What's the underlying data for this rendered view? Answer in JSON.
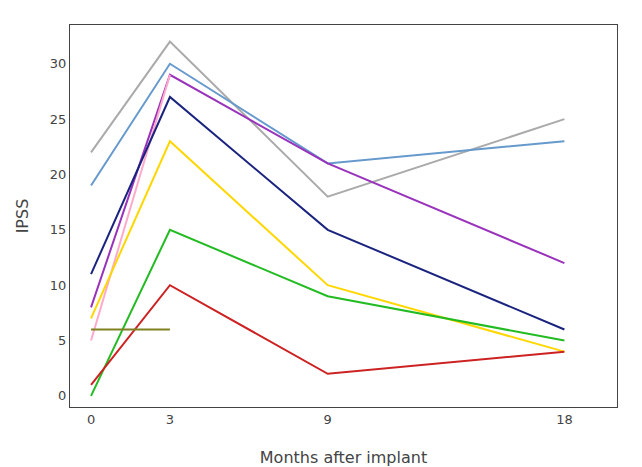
{
  "chart_data": {
    "type": "line",
    "xlabel": "Months after implant",
    "ylabel": "IPSS",
    "series": [
      {
        "x": [
          0,
          3,
          9,
          18
        ],
        "values": [
          22,
          32,
          18,
          25
        ],
        "color": "#AAAAAA"
      },
      {
        "x": [
          0,
          3,
          9,
          18
        ],
        "values": [
          19,
          30,
          21,
          23
        ],
        "color": "#6699CC"
      },
      {
        "x": [
          0,
          3,
          9,
          18
        ],
        "values": [
          8,
          29,
          21,
          12
        ],
        "color": "#9933BB"
      },
      {
        "x": [
          0,
          3
        ],
        "values": [
          5,
          29
        ],
        "color": "#FFAACC"
      },
      {
        "x": [
          0,
          3,
          9,
          18
        ],
        "values": [
          11,
          27,
          15,
          6
        ],
        "color": "#1A237E"
      },
      {
        "x": [
          0,
          3,
          9,
          18
        ],
        "values": [
          7,
          23,
          10,
          4
        ],
        "color": "#FFD700"
      },
      {
        "x": [
          0,
          3,
          9,
          18
        ],
        "values": [
          0,
          15,
          9,
          5
        ],
        "color": "#22BB22"
      },
      {
        "x": [
          0,
          3,
          9,
          18
        ],
        "values": [
          1,
          10,
          2,
          4
        ],
        "color": "#CC2222"
      },
      {
        "x": [
          0,
          3
        ],
        "values": [
          6,
          6
        ],
        "color": "#808020"
      }
    ],
    "xlim": [
      -0.8,
      20.0
    ],
    "xticks": [
      0,
      3,
      9,
      18
    ],
    "ylim": [
      -1.0,
      33.5
    ],
    "yticks": [
      0,
      5,
      10,
      15,
      20,
      25,
      30
    ],
    "grid": false
  }
}
